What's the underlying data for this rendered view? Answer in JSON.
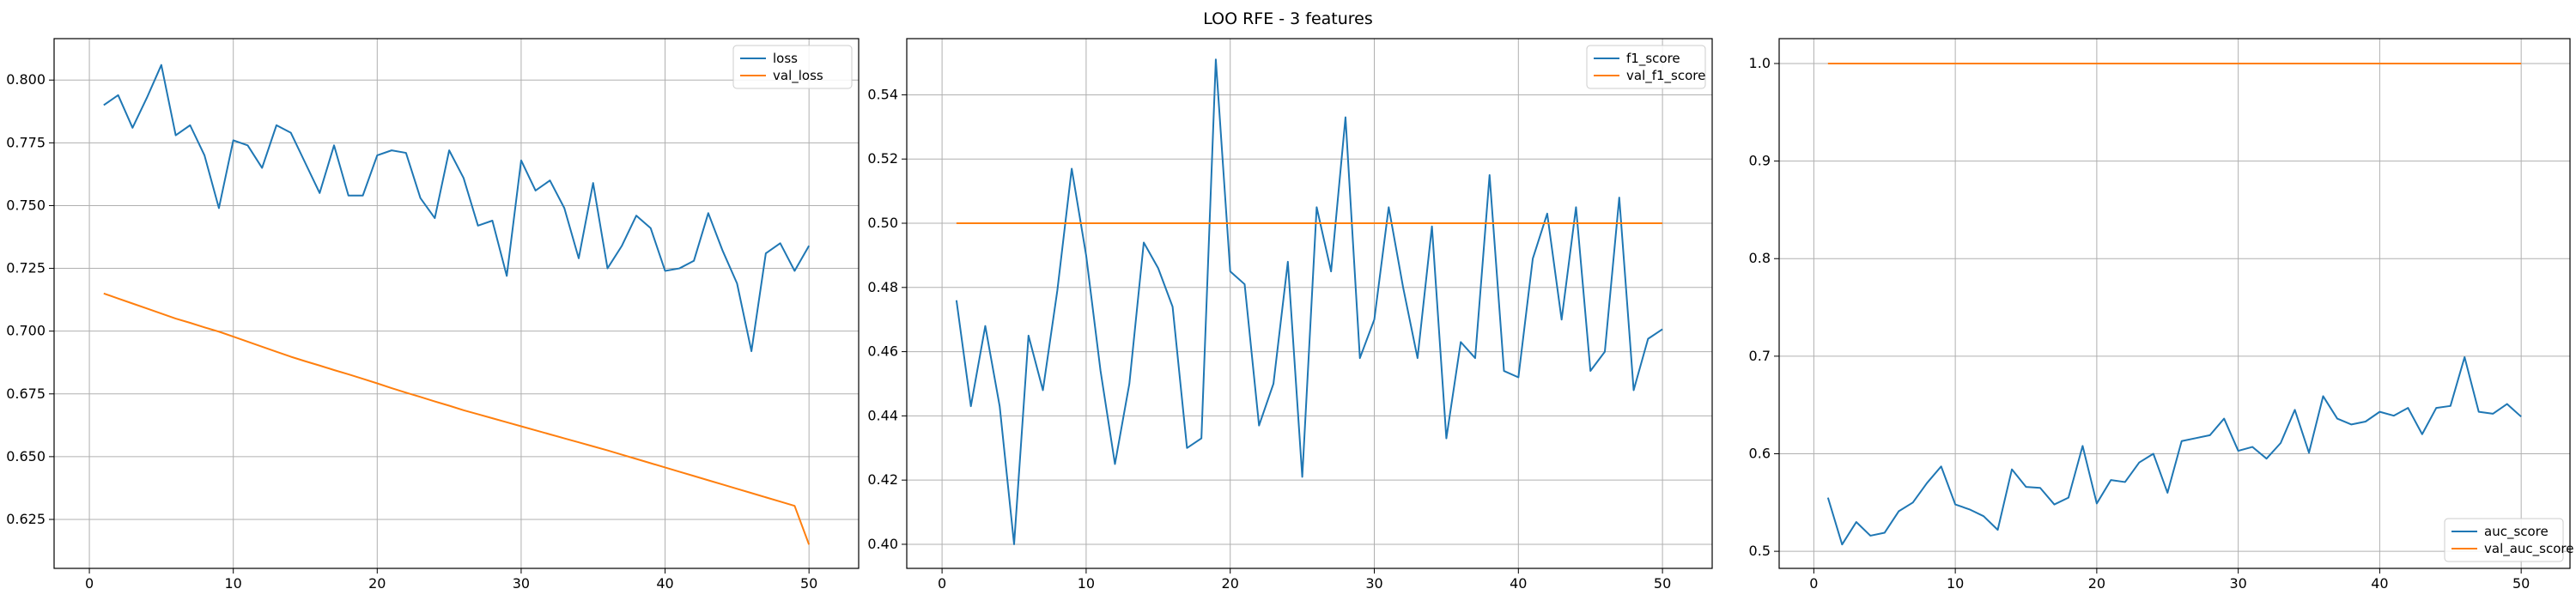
{
  "title": "LOO RFE - 3 features",
  "colors": {
    "series_1": "#1f77b4",
    "series_2": "#ff7f0e",
    "grid": "#b0b0b0",
    "axes": "#000000"
  },
  "chart_data": [
    {
      "type": "line",
      "title": "",
      "xlabel": "",
      "ylabel": "",
      "xlim": [
        -2.45,
        53.45
      ],
      "ylim": [
        0.6055,
        0.8165
      ],
      "xticks": [
        0,
        10,
        20,
        30,
        40,
        50
      ],
      "yticks": [
        0.625,
        0.65,
        0.675,
        0.7,
        0.725,
        0.75,
        0.775,
        0.8
      ],
      "ytick_labels": [
        "0.625",
        "0.650",
        "0.675",
        "0.700",
        "0.725",
        "0.750",
        "0.775",
        "0.800"
      ],
      "grid": true,
      "legend_position": "upper right",
      "x": [
        1,
        2,
        3,
        4,
        5,
        6,
        7,
        8,
        9,
        10,
        11,
        12,
        13,
        14,
        15,
        16,
        17,
        18,
        19,
        20,
        21,
        22,
        23,
        24,
        25,
        26,
        27,
        28,
        29,
        30,
        31,
        32,
        33,
        34,
        35,
        36,
        37,
        38,
        39,
        40,
        41,
        42,
        43,
        44,
        45,
        46,
        47,
        48,
        49,
        50
      ],
      "series": [
        {
          "name": "loss",
          "color": "#1f77b4",
          "values": [
            0.79,
            0.794,
            0.781,
            0.793,
            0.806,
            0.778,
            0.782,
            0.77,
            0.749,
            0.776,
            0.774,
            0.765,
            0.782,
            0.779,
            0.767,
            0.755,
            0.774,
            0.754,
            0.754,
            0.77,
            0.772,
            0.771,
            0.753,
            0.745,
            0.772,
            0.761,
            0.742,
            0.744,
            0.722,
            0.768,
            0.756,
            0.76,
            0.749,
            0.729,
            0.759,
            0.725,
            0.734,
            0.746,
            0.741,
            0.724,
            0.725,
            0.728,
            0.747,
            0.732,
            0.719,
            0.692,
            0.731,
            0.735,
            0.724,
            0.734
          ]
        },
        {
          "name": "val_loss",
          "color": "#ff7f0e",
          "values": [
            0.715,
            0.713,
            0.711,
            0.709,
            0.707,
            0.705,
            0.7033,
            0.7015,
            0.6998,
            0.6978,
            0.6958,
            0.6938,
            0.6918,
            0.6898,
            0.688,
            0.6863,
            0.6845,
            0.6828,
            0.681,
            0.6792,
            0.6773,
            0.6755,
            0.6738,
            0.672,
            0.6703,
            0.6685,
            0.6669,
            0.6653,
            0.6637,
            0.6621,
            0.6605,
            0.6589,
            0.6573,
            0.6557,
            0.6541,
            0.6525,
            0.6508,
            0.6491,
            0.6474,
            0.6457,
            0.644,
            0.6423,
            0.6406,
            0.6389,
            0.6372,
            0.6355,
            0.6338,
            0.6321,
            0.6304,
            0.615
          ]
        }
      ]
    },
    {
      "type": "line",
      "title": "",
      "xlabel": "",
      "ylabel": "",
      "xlim": [
        -2.45,
        53.45
      ],
      "ylim": [
        0.3925,
        0.5575
      ],
      "xticks": [
        0,
        10,
        20,
        30,
        40,
        50
      ],
      "yticks": [
        0.4,
        0.42,
        0.44,
        0.46,
        0.48,
        0.5,
        0.52,
        0.54
      ],
      "ytick_labels": [
        "0.40",
        "0.42",
        "0.44",
        "0.46",
        "0.48",
        "0.50",
        "0.52",
        "0.54"
      ],
      "grid": true,
      "legend_position": "upper right",
      "x": [
        1,
        2,
        3,
        4,
        5,
        6,
        7,
        8,
        9,
        10,
        11,
        12,
        13,
        14,
        15,
        16,
        17,
        18,
        19,
        20,
        21,
        22,
        23,
        24,
        25,
        26,
        27,
        28,
        29,
        30,
        31,
        32,
        33,
        34,
        35,
        36,
        37,
        38,
        39,
        40,
        41,
        42,
        43,
        44,
        45,
        46,
        47,
        48,
        49,
        50
      ],
      "series": [
        {
          "name": "f1_score",
          "color": "#1f77b4",
          "values": [
            0.476,
            0.443,
            0.468,
            0.443,
            0.4,
            0.465,
            0.448,
            0.479,
            0.517,
            0.49,
            0.454,
            0.425,
            0.45,
            0.494,
            0.486,
            0.474,
            0.43,
            0.433,
            0.551,
            0.485,
            0.481,
            0.437,
            0.45,
            0.488,
            0.421,
            0.505,
            0.485,
            0.533,
            0.458,
            0.47,
            0.505,
            0.48,
            0.458,
            0.499,
            0.433,
            0.463,
            0.458,
            0.515,
            0.454,
            0.452,
            0.489,
            0.503,
            0.47,
            0.505,
            0.454,
            0.46,
            0.508,
            0.448,
            0.464,
            0.467
          ]
        },
        {
          "name": "val_f1_score",
          "color": "#ff7f0e",
          "values": [
            0.5,
            0.5,
            0.5,
            0.5,
            0.5,
            0.5,
            0.5,
            0.5,
            0.5,
            0.5,
            0.5,
            0.5,
            0.5,
            0.5,
            0.5,
            0.5,
            0.5,
            0.5,
            0.5,
            0.5,
            0.5,
            0.5,
            0.5,
            0.5,
            0.5,
            0.5,
            0.5,
            0.5,
            0.5,
            0.5,
            0.5,
            0.5,
            0.5,
            0.5,
            0.5,
            0.5,
            0.5,
            0.5,
            0.5,
            0.5,
            0.5,
            0.5,
            0.5,
            0.5,
            0.5,
            0.5,
            0.5,
            0.5,
            0.5,
            0.5
          ]
        }
      ]
    },
    {
      "type": "line",
      "title": "",
      "xlabel": "",
      "ylabel": "",
      "xlim": [
        -2.45,
        53.45
      ],
      "ylim": [
        0.4825,
        1.0255
      ],
      "xticks": [
        0,
        10,
        20,
        30,
        40,
        50
      ],
      "yticks": [
        0.5,
        0.6,
        0.7,
        0.8,
        0.9,
        1.0
      ],
      "ytick_labels": [
        "0.5",
        "0.6",
        "0.7",
        "0.8",
        "0.9",
        "1.0"
      ],
      "grid": true,
      "legend_position": "lower right",
      "x": [
        1,
        2,
        3,
        4,
        5,
        6,
        7,
        8,
        9,
        10,
        11,
        12,
        13,
        14,
        15,
        16,
        17,
        18,
        19,
        20,
        21,
        22,
        23,
        24,
        25,
        26,
        27,
        28,
        29,
        30,
        31,
        32,
        33,
        34,
        35,
        36,
        37,
        38,
        39,
        40,
        41,
        42,
        43,
        44,
        45,
        46,
        47,
        48,
        49,
        50
      ],
      "series": [
        {
          "name": "auc_score",
          "color": "#1f77b4",
          "values": [
            0.555,
            0.507,
            0.53,
            0.516,
            0.519,
            0.541,
            0.55,
            0.57,
            0.587,
            0.548,
            0.543,
            0.536,
            0.522,
            0.584,
            0.566,
            0.565,
            0.548,
            0.555,
            0.608,
            0.549,
            0.573,
            0.571,
            0.591,
            0.6,
            0.56,
            0.613,
            0.616,
            0.619,
            0.636,
            0.603,
            0.607,
            0.595,
            0.611,
            0.645,
            0.601,
            0.659,
            0.636,
            0.63,
            0.633,
            0.643,
            0.639,
            0.647,
            0.62,
            0.647,
            0.649,
            0.699,
            0.643,
            0.641,
            0.651,
            0.638
          ]
        },
        {
          "name": "val_auc_score",
          "color": "#ff7f0e",
          "values": [
            1.0,
            1.0,
            1.0,
            1.0,
            1.0,
            1.0,
            1.0,
            1.0,
            1.0,
            1.0,
            1.0,
            1.0,
            1.0,
            1.0,
            1.0,
            1.0,
            1.0,
            1.0,
            1.0,
            1.0,
            1.0,
            1.0,
            1.0,
            1.0,
            1.0,
            1.0,
            1.0,
            1.0,
            1.0,
            1.0,
            1.0,
            1.0,
            1.0,
            1.0,
            1.0,
            1.0,
            1.0,
            1.0,
            1.0,
            1.0,
            1.0,
            1.0,
            1.0,
            1.0,
            1.0,
            1.0,
            1.0,
            1.0,
            1.0,
            1.0
          ]
        }
      ]
    }
  ]
}
